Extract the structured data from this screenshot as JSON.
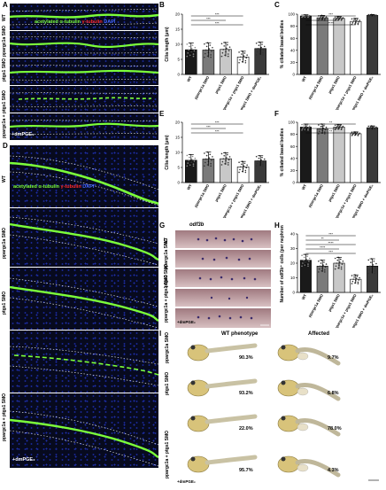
{
  "panels": {
    "A": "A",
    "B": "B",
    "C": "C",
    "D": "D",
    "E": "E",
    "F": "F",
    "G": "G",
    "H": "H",
    "I": "I"
  },
  "panelA": {
    "rows": [
      "WT",
      "ppargc1a SMO",
      "ptgs1 SMO",
      "ppargc1a + ptgs1 SMO"
    ],
    "legend": {
      "acetylated": "acetylated α-tubulin",
      "gamma": "γ-tubulin",
      "dapi": "DAPI"
    },
    "dmpge": "+dmPGE₂"
  },
  "panelD": {
    "rows": [
      "WT",
      "ppargc1a SMO",
      "ptgs1 SMO",
      "ppargc1a + ptgs1 SMO"
    ],
    "legend": {
      "acetylated": "acetylated α-tubulin",
      "gamma": "γ-tubulin",
      "dapi": "DAPI"
    },
    "dmpge": "+dmPGE₂"
  },
  "panelG": {
    "title": "odf3b",
    "rows": [
      "WT",
      "ppargc1a SMO",
      "ptgs1 SMO",
      "ppargc1a + ptgs1 SMO"
    ],
    "dmpge": "+dmPGE₂"
  },
  "panelI": {
    "col1": "WT phenotype",
    "col2": "Affected",
    "rows": [
      "ppargc1a SMO",
      "ptgs1 SMO",
      "ppargc1a + ptgs1 SMO"
    ],
    "dmpge": "+dmPGE₂",
    "wt_pct": [
      "90.3%",
      "93.2%",
      "22.0%",
      "95.7%"
    ],
    "aff_pct": [
      "9.7%",
      "6.8%",
      "78.0%",
      "4.3%"
    ]
  },
  "chart_data": [
    {
      "id": "B",
      "type": "bar",
      "ylabel": "Cilia length (μm)",
      "ylim": [
        0,
        20
      ],
      "yticks": [
        "0",
        "5",
        "10",
        "15",
        "20"
      ],
      "categories": [
        "WT",
        "ppargc1a SMO",
        "ptgs1 SMO",
        "ppargc1a + ptgs1 SMO",
        "ppargc1a + ptgs1 SMO + dmPGE₂"
      ],
      "values": [
        8.2,
        8.1,
        8.3,
        5.8,
        8.6
      ],
      "errors": [
        2.2,
        2.4,
        2.3,
        1.9,
        2.1
      ],
      "colors": [
        "#1a1a1a",
        "#7a7a7a",
        "#c8c8c8",
        "#ffffff",
        "#3a3a3a"
      ],
      "sig": [
        "***",
        "***",
        "***"
      ]
    },
    {
      "id": "C",
      "type": "bar",
      "ylabel": "% ciliated basal bodies",
      "ylim": [
        0,
        100
      ],
      "yticks": [
        "0",
        "20",
        "40",
        "60",
        "80",
        "100"
      ],
      "categories": [
        "WT",
        "ppargc1a SMO",
        "ptgs1 SMO",
        "ppargc1a + ptgs1 SMO",
        "ppargc1a + ptgs1 SMO + dmPGE₂"
      ],
      "values": [
        97,
        94,
        93,
        88,
        98
      ],
      "errors": [
        2,
        4,
        3,
        5,
        1.5
      ],
      "colors": [
        "#1a1a1a",
        "#7a7a7a",
        "#c8c8c8",
        "#ffffff",
        "#3a3a3a"
      ],
      "sig": [
        "***",
        "*",
        "****"
      ]
    },
    {
      "id": "E",
      "type": "bar",
      "ylabel": "Cilia length (μm)",
      "ylim": [
        0,
        20
      ],
      "yticks": [
        "0",
        "5",
        "10",
        "15",
        "20"
      ],
      "categories": [
        "WT",
        "ppargc1a SMO",
        "ptgs1 SMO",
        "ppargc1a + ptgs1 SMO",
        "ppargc1a + ptgs1 SMO + dmPGE₂"
      ],
      "values": [
        7.4,
        7.8,
        7.9,
        5.2,
        7.2
      ],
      "errors": [
        1.9,
        2.3,
        2.0,
        1.8,
        1.7
      ],
      "colors": [
        "#1a1a1a",
        "#7a7a7a",
        "#c8c8c8",
        "#ffffff",
        "#3a3a3a"
      ],
      "sig": [
        "***",
        "***",
        "***"
      ]
    },
    {
      "id": "F",
      "type": "bar",
      "ylabel": "% ciliated basal bodies",
      "ylim": [
        0,
        100
      ],
      "yticks": [
        "0",
        "20",
        "40",
        "60",
        "80",
        "100"
      ],
      "categories": [
        "WT",
        "ppargc1a SMO",
        "ptgs1 SMO",
        "ppargc1a + ptgs1 SMO",
        "ppargc1a + ptgs1 SMO + dmPGE₂"
      ],
      "values": [
        92,
        89,
        92,
        81,
        91
      ],
      "errors": [
        5,
        8,
        4,
        3,
        3
      ],
      "colors": [
        "#1a1a1a",
        "#7a7a7a",
        "#c8c8c8",
        "#ffffff",
        "#3a3a3a"
      ],
      "sig": [
        "**",
        "**",
        "**"
      ]
    },
    {
      "id": "H",
      "type": "bar",
      "ylabel": "Number of odf3b⁺ cells (per nephron)",
      "ylim": [
        0,
        40
      ],
      "yticks": [
        "0",
        "10",
        "20",
        "30",
        "40"
      ],
      "categories": [
        "WT",
        "ppargc1a SMO",
        "ptgs1 SMO",
        "ppargc1a + ptgs1 SMO",
        "ppargc1a + ptgs1 SMO + dmPGE₂"
      ],
      "values": [
        22,
        18,
        20,
        9,
        18
      ],
      "errors": [
        4,
        4,
        4,
        3,
        5
      ],
      "colors": [
        "#1a1a1a",
        "#7a7a7a",
        "#c8c8c8",
        "#ffffff",
        "#3a3a3a"
      ],
      "sig": [
        "***",
        "**",
        "****",
        "****",
        "***"
      ]
    }
  ]
}
